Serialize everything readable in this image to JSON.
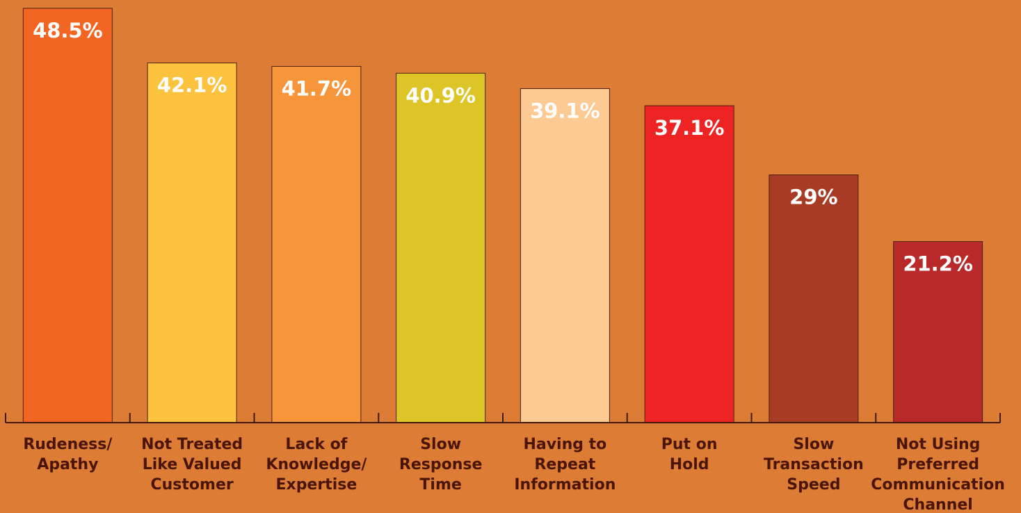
{
  "chart_data": {
    "type": "bar",
    "categories": [
      [
        "Rudeness/",
        "Apathy"
      ],
      [
        "Not Treated",
        "Like Valued",
        "Customer"
      ],
      [
        "Lack of",
        "Knowledge/",
        "Expertise"
      ],
      [
        "Slow",
        "Response",
        "Time"
      ],
      [
        "Having to",
        "Repeat",
        "Information"
      ],
      [
        "Put on",
        "Hold"
      ],
      [
        "Slow",
        "Transaction",
        "Speed"
      ],
      [
        "Not Using",
        "Preferred",
        "Communication",
        "Channel"
      ]
    ],
    "values": [
      48.5,
      42.1,
      41.7,
      40.9,
      39.1,
      37.1,
      29,
      21.2
    ],
    "value_labels": [
      "48.5%",
      "42.1%",
      "41.7%",
      "40.9%",
      "39.1%",
      "37.1%",
      "29%",
      "21.2%"
    ],
    "colors": [
      "#f26522",
      "#fdc23e",
      "#f7953a",
      "#dec527",
      "#feca94",
      "#ee2424",
      "#a83b24",
      "#b8292a"
    ],
    "ylim": [
      0,
      50
    ]
  }
}
